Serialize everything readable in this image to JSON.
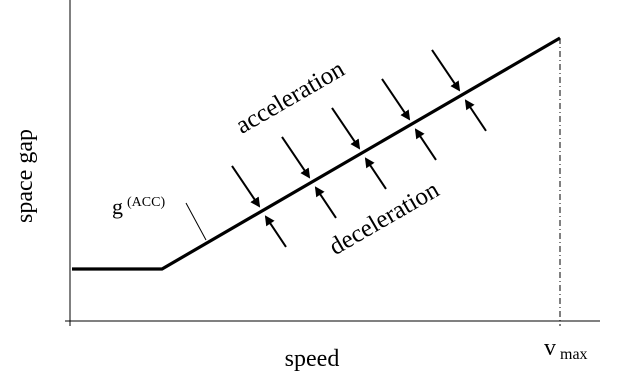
{
  "chart_data": {
    "type": "line",
    "xlabel": "speed",
    "ylabel": "space gap",
    "x_tick_label": "v",
    "x_tick_subscript": "max",
    "curve_label": "g",
    "curve_label_superscript": "(ACC)",
    "annotations": {
      "upper": "acceleration",
      "lower": "deceleration"
    },
    "arrow_pairs": 5,
    "colors": {
      "line": "#000000",
      "text": "#000000"
    }
  }
}
